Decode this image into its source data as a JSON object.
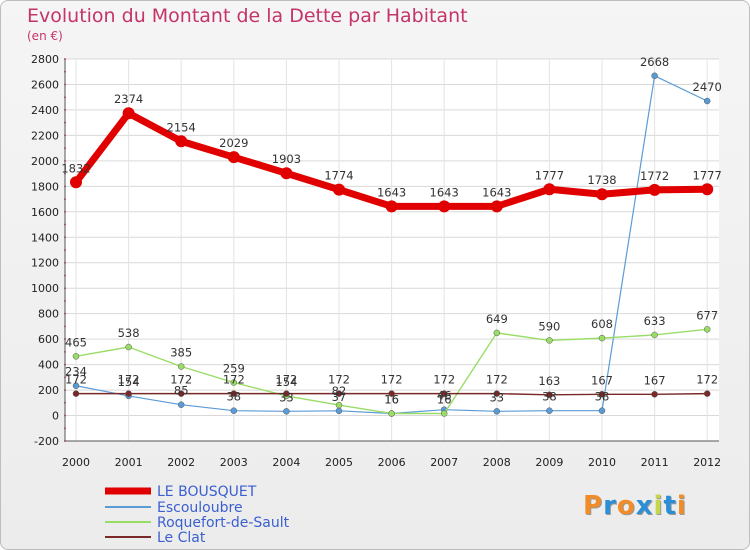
{
  "chart_data": {
    "type": "line",
    "title": "Evolution du Montant de la Dette par Habitant",
    "subtitle": "(en €)",
    "x": [
      "2000",
      "2001",
      "2002",
      "2003",
      "2004",
      "2005",
      "2006",
      "2007",
      "2008",
      "2009",
      "2010",
      "2011",
      "2012"
    ],
    "ylim": [
      -200,
      2800
    ],
    "yticks": [
      -200,
      0,
      200,
      400,
      600,
      800,
      1000,
      1200,
      1400,
      1600,
      1800,
      2000,
      2200,
      2400,
      2600,
      2800
    ],
    "grid": true,
    "legend_position": "bottom-left",
    "series": [
      {
        "name": "LE BOUSQUET",
        "color": "#e10000",
        "values": [
          1832,
          2374,
          2154,
          2029,
          1903,
          1774,
          1643,
          1643,
          1643,
          1777,
          1738,
          1772,
          1777
        ],
        "labels": [
          "1832",
          "2374",
          "2154",
          "2029",
          "1903",
          "1774",
          "1643",
          "1643",
          "1643",
          "1777",
          "1738",
          "1772",
          "1777"
        ]
      },
      {
        "name": "Escouloubre",
        "color": "#5b9bd5",
        "values": [
          234,
          154,
          85,
          38,
          33,
          37,
          16,
          46,
          33,
          38,
          38,
          2668,
          2470
        ],
        "labels": [
          "234",
          "154",
          "85",
          "38",
          "33",
          "37",
          "16",
          "46",
          "33",
          "38",
          "38",
          "2668",
          "2470"
        ]
      },
      {
        "name": "Roquefort-de-Sault",
        "color": "#99dd66",
        "values": [
          465,
          538,
          385,
          259,
          154,
          82,
          16,
          16,
          649,
          590,
          608,
          633,
          677
        ],
        "labels": [
          "465",
          "538",
          "385",
          "259",
          "154",
          "82",
          "16",
          "16",
          "649",
          "590",
          "608",
          "633",
          "677"
        ]
      },
      {
        "name": "Le Clat",
        "color": "#7a2828",
        "values": [
          172,
          172,
          172,
          172,
          172,
          172,
          172,
          172,
          172,
          163,
          167,
          167,
          172
        ],
        "labels": [
          "172",
          "172",
          "172",
          "172",
          "172",
          "172",
          "172",
          "172",
          "172",
          "163",
          "167",
          "167",
          "172"
        ]
      }
    ]
  },
  "brand": {
    "logo_text": "Proxiti"
  }
}
